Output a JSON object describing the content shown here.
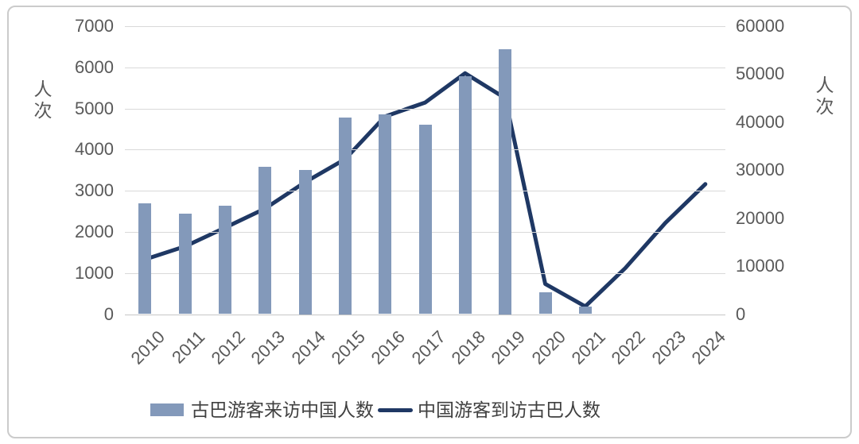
{
  "chart_data": {
    "type": "combo_bar_line_dual_axis",
    "title": "",
    "categories": [
      "2010",
      "2011",
      "2012",
      "2013",
      "2014",
      "2015",
      "2016",
      "2017",
      "2018",
      "2019",
      "2020",
      "2021",
      "2022",
      "2023",
      "2024"
    ],
    "series": [
      {
        "name": "古巴游客来访中国人数",
        "type": "bar",
        "axis": "left",
        "values": [
          2700,
          2450,
          2640,
          3590,
          3500,
          4780,
          4860,
          4610,
          5780,
          6440,
          530,
          180,
          null,
          null,
          null
        ]
      },
      {
        "name": "中国游客到访古巴人数",
        "type": "line",
        "axis": "right",
        "values": [
          11400,
          14100,
          18000,
          22000,
          27500,
          32300,
          41200,
          44100,
          50200,
          45000,
          6300,
          1600,
          9600,
          19000,
          27100
        ]
      }
    ],
    "left_axis": {
      "title": "人次",
      "min": 0,
      "max": 7000,
      "tick_step": 1000,
      "ticks": [
        0,
        1000,
        2000,
        3000,
        4000,
        5000,
        6000,
        7000
      ]
    },
    "right_axis": {
      "title": "人次",
      "min": 0,
      "max": 60000,
      "tick_step": 10000,
      "ticks": [
        0,
        10000,
        20000,
        30000,
        40000,
        50000,
        60000
      ]
    },
    "grid": "horizontal",
    "legend_position": "bottom"
  },
  "colors": {
    "bar": "#8399BA",
    "line": "#1F3864",
    "gridline": "#D9D9D9",
    "axis_line": "#C6C6C6",
    "tick_text": "#595959",
    "axis_title_text": "#595959",
    "legend_text": "#404040",
    "card_border": "#CBCBCB",
    "background": "#FFFFFF"
  }
}
